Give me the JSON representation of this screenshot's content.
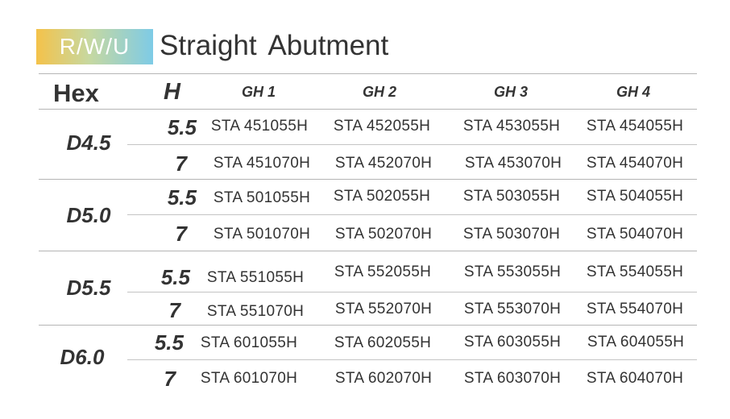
{
  "header": {
    "badge": "R/W/U",
    "title": "Straight  Abutment"
  },
  "table": {
    "col_headers": {
      "hex": "Hex",
      "h": "H",
      "gh": [
        "GH 1",
        "GH 2",
        "GH 3",
        "GH 4"
      ]
    },
    "groups": [
      {
        "diameter": "D4.5",
        "rows": [
          {
            "h": "5.5",
            "codes": [
              "STA 451055H",
              "STA 452055H",
              "STA 453055H",
              "STA 454055H"
            ]
          },
          {
            "h": "7",
            "codes": [
              "STA 451070H",
              "STA 452070H",
              "STA 453070H",
              "STA 454070H"
            ]
          }
        ]
      },
      {
        "diameter": "D5.0",
        "rows": [
          {
            "h": "5.5",
            "codes": [
              "STA 501055H",
              "STA 502055H",
              "STA 503055H",
              "STA 504055H"
            ]
          },
          {
            "h": "7",
            "codes": [
              "STA 501070H",
              "STA 502070H",
              "STA 503070H",
              "STA 504070H"
            ]
          }
        ]
      },
      {
        "diameter": "D5.5",
        "rows": [
          {
            "h": "5.5",
            "codes": [
              "STA 551055H",
              "STA 552055H",
              "STA 553055H",
              "STA 554055H"
            ]
          },
          {
            "h": "7",
            "codes": [
              "STA 551070H",
              "STA 552070H",
              "STA 553070H",
              "STA 554070H"
            ]
          }
        ]
      },
      {
        "diameter": "D6.0",
        "rows": [
          {
            "h": "5.5",
            "codes": [
              "STA 601055H",
              "STA 602055H",
              "STA 603055H",
              "STA 604055H"
            ]
          },
          {
            "h": "7",
            "codes": [
              "STA 601070H",
              "STA 602070H",
              "STA 603070H",
              "STA 604070H"
            ]
          }
        ]
      }
    ]
  }
}
